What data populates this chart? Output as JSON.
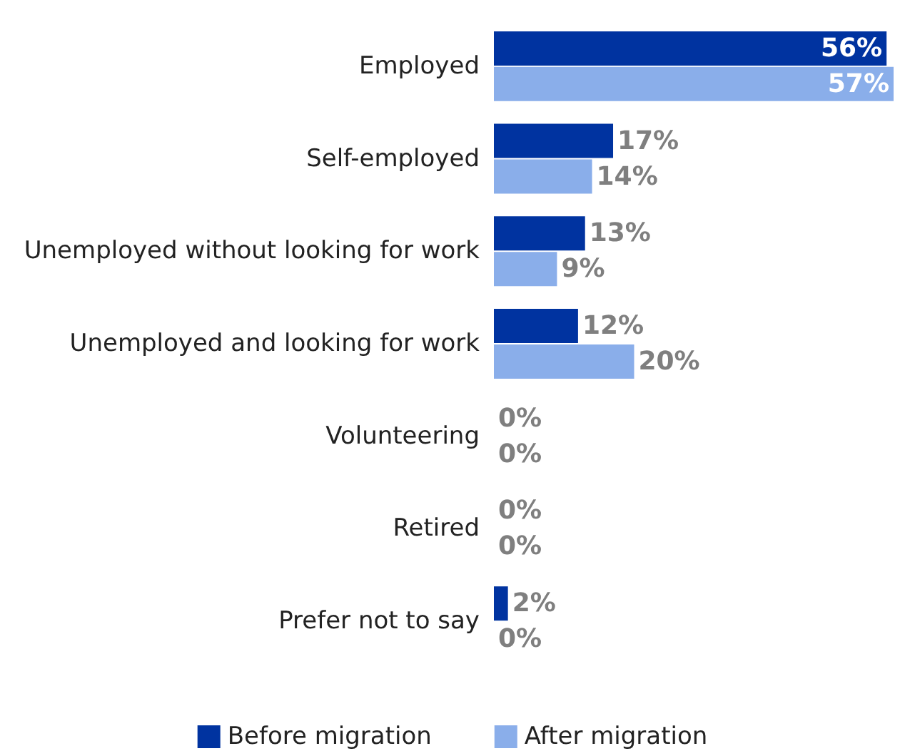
{
  "chart_data": {
    "type": "bar",
    "orientation": "horizontal",
    "categories": [
      "Employed",
      "Self-employed",
      "Unemployed without looking for work",
      "Unemployed and looking for work",
      "Volunteering",
      "Retired",
      "Prefer not to say"
    ],
    "series": [
      {
        "name": "Before migration",
        "color": "#0033a0",
        "values": [
          56,
          17,
          13,
          12,
          0,
          0,
          2
        ],
        "value_labels": [
          "56%",
          "17%",
          "13%",
          "12%",
          "0%",
          "0%",
          "2%"
        ]
      },
      {
        "name": "After migration",
        "color": "#8aaeea",
        "values": [
          57,
          14,
          9,
          20,
          0,
          0,
          0
        ],
        "value_labels": [
          "57%",
          "14%",
          "9%",
          "20%",
          "0%",
          "0%",
          "0%"
        ]
      }
    ],
    "legend": "bottom",
    "tick_labels": "y"
  }
}
